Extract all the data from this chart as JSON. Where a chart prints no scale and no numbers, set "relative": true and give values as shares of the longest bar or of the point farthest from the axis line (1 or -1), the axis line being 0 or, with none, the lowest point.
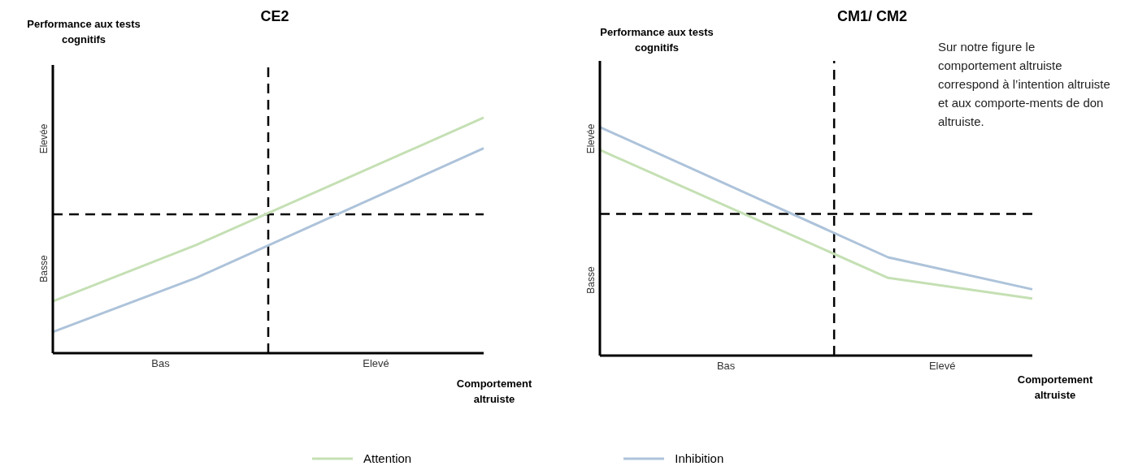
{
  "chart_data": [
    {
      "type": "line",
      "title": "CE2",
      "ylabel": "Performance aux tests cognitifs",
      "xlabel": "Comportement altruiste",
      "relative": true,
      "tick_labels": "x",
      "legend": "bottom",
      "marker": "none",
      "line_style": "solid",
      "categories": [
        null,
        null,
        null,
        null,
        null,
        null,
        "Bas",
        null,
        null,
        null,
        null,
        null,
        null,
        null,
        null,
        null,
        null,
        null,
        "Elevé",
        null,
        null,
        null,
        null,
        null,
        null
      ],
      "series": [
        {
          "name": "Attention",
          "color": "#c5e0b4",
          "values": [
            0.22,
            null,
            null,
            null,
            null,
            null,
            null,
            null,
            0.46,
            null,
            null,
            null,
            null,
            null,
            null,
            null,
            null,
            null,
            null,
            null,
            null,
            null,
            null,
            null,
            1
          ]
        },
        {
          "name": "Inhibition",
          "color": "#adc3da",
          "values": [
            0.09,
            null,
            null,
            null,
            null,
            null,
            null,
            null,
            0.32,
            null,
            null,
            null,
            null,
            null,
            null,
            null,
            null,
            null,
            null,
            null,
            null,
            null,
            null,
            null,
            0.87
          ]
        }
      ],
      "ref_lines": [
        {
          "axis": "y",
          "value": 0.59,
          "color": "#000000",
          "line_style": "dashed"
        }
      ],
      "annotations": [
        "Elevée",
        "Basse"
      ]
    },
    {
      "type": "line",
      "title": "CM1/ CM2",
      "ylabel": "Performance aux tests cognitifs",
      "xlabel": "Comportement altruiste",
      "relative": true,
      "tick_labels": "x",
      "marker": "none",
      "line_style": "solid",
      "categories": [
        null,
        null,
        null,
        null,
        null,
        null,
        null,
        "Bas",
        null,
        null,
        null,
        null,
        null,
        null,
        null,
        null,
        null,
        null,
        null,
        "Elevé",
        null,
        null,
        null,
        null,
        null
      ],
      "series": [
        {
          "color": "#c5e0b4",
          "values": [
            0.9,
            null,
            null,
            null,
            null,
            null,
            null,
            null,
            null,
            null,
            null,
            null,
            null,
            null,
            null,
            null,
            0.34,
            null,
            null,
            null,
            null,
            null,
            null,
            null,
            0.25
          ]
        },
        {
          "color": "#adc3da",
          "values": [
            1,
            null,
            null,
            null,
            null,
            null,
            null,
            null,
            null,
            null,
            null,
            null,
            null,
            null,
            null,
            null,
            0.43,
            null,
            null,
            null,
            null,
            null,
            null,
            null,
            0.29
          ]
        }
      ],
      "ref_lines": [
        {
          "axis": "y",
          "value": 0.62,
          "color": "#000000",
          "line_style": "dashed"
        }
      ],
      "annotations": [
        "Elevée",
        "Basse",
        "Sur notre figure le comportement altruiste correspond à l’intention altruiste et aux comporte-ments de don altruiste."
      ]
    }
  ]
}
